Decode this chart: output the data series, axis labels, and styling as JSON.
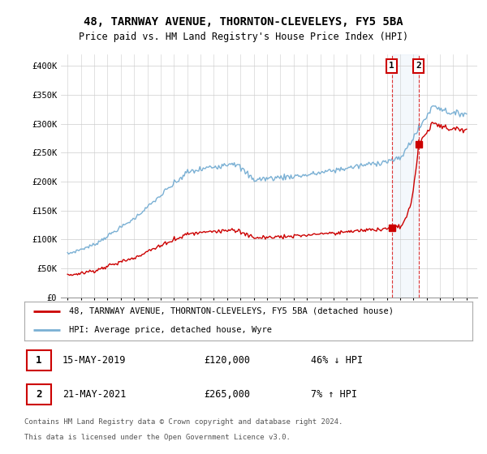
{
  "title": "48, TARNWAY AVENUE, THORNTON-CLEVELEYS, FY5 5BA",
  "subtitle": "Price paid vs. HM Land Registry's House Price Index (HPI)",
  "ylim": [
    0,
    420000
  ],
  "yticks": [
    0,
    50000,
    100000,
    150000,
    200000,
    250000,
    300000,
    350000,
    400000
  ],
  "ytick_labels": [
    "£0",
    "£50K",
    "£100K",
    "£150K",
    "£200K",
    "£250K",
    "£300K",
    "£350K",
    "£400K"
  ],
  "legend_entry1": "48, TARNWAY AVENUE, THORNTON-CLEVELEYS, FY5 5BA (detached house)",
  "legend_entry2": "HPI: Average price, detached house, Wyre",
  "sale1_date": "15-MAY-2019",
  "sale1_price": "£120,000",
  "sale1_hpi": "46% ↓ HPI",
  "sale2_date": "21-MAY-2021",
  "sale2_price": "£265,000",
  "sale2_hpi": "7% ↑ HPI",
  "footnote1": "Contains HM Land Registry data © Crown copyright and database right 2024.",
  "footnote2": "This data is licensed under the Open Government Licence v3.0.",
  "color_red": "#cc0000",
  "color_blue": "#7ab0d4",
  "sale1_x": 2019.37,
  "sale2_x": 2021.38,
  "xlim_left": 1994.5,
  "xlim_right": 2025.8
}
